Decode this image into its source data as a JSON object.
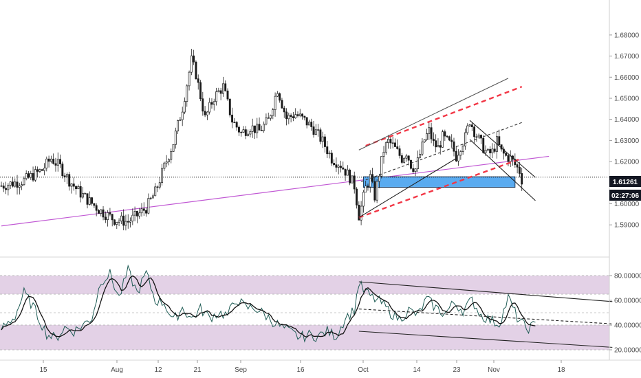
{
  "chart_data": [
    {
      "type": "candlestick",
      "title": "",
      "x_ticks": [
        "15",
        "Aug",
        "12",
        "21",
        "Sep",
        "16",
        "Oct",
        "14",
        "23",
        "Nov",
        "18"
      ],
      "y_ticks": [
        "1.68000",
        "1.67000",
        "1.66000",
        "1.65000",
        "1.64000",
        "1.63000",
        "1.62000",
        "1.61000",
        "1.60000",
        "1.59000"
      ],
      "ylim": [
        1.5855,
        1.6855
      ],
      "last_price": "1.61261",
      "countdown": "02:27:06",
      "price_anchors": [
        [
          0,
          1.6085
        ],
        [
          10,
          1.611
        ],
        [
          18,
          1.616
        ],
        [
          22,
          1.6215
        ],
        [
          26,
          1.6175
        ],
        [
          30,
          1.611
        ],
        [
          34,
          1.606
        ],
        [
          38,
          1.602
        ],
        [
          44,
          1.5965
        ],
        [
          50,
          1.5925
        ],
        [
          56,
          1.5915
        ],
        [
          60,
          1.5945
        ],
        [
          64,
          1.598
        ],
        [
          68,
          1.6055
        ],
        [
          72,
          1.6175
        ],
        [
          76,
          1.629
        ],
        [
          80,
          1.6455
        ],
        [
          84,
          1.668
        ],
        [
          86,
          1.6615
        ],
        [
          90,
          1.6405
        ],
        [
          94,
          1.6505
        ],
        [
          98,
          1.6555
        ],
        [
          102,
          1.6395
        ],
        [
          106,
          1.6335
        ],
        [
          110,
          1.6365
        ],
        [
          114,
          1.6345
        ],
        [
          118,
          1.6395
        ],
        [
          122,
          1.6545
        ],
        [
          126,
          1.6405
        ],
        [
          130,
          1.6425
        ],
        [
          134,
          1.6395
        ],
        [
          138,
          1.6355
        ],
        [
          142,
          1.6295
        ],
        [
          146,
          1.6215
        ],
        [
          150,
          1.6185
        ],
        [
          154,
          1.6125
        ],
        [
          156,
          1.6085
        ],
        [
          158,
          1.5945
        ],
        [
          159,
          1.5985
        ],
        [
          161,
          1.6075
        ],
        [
          163,
          1.6125
        ],
        [
          165,
          1.6035
        ],
        [
          167,
          1.6145
        ],
        [
          169,
          1.6255
        ],
        [
          171,
          1.6295
        ],
        [
          173,
          1.6275
        ],
        [
          175,
          1.6245
        ],
        [
          177,
          1.6215
        ],
        [
          179,
          1.6245
        ],
        [
          181,
          1.6185
        ],
        [
          183,
          1.6165
        ],
        [
          185,
          1.6235
        ],
        [
          187,
          1.6305
        ],
        [
          189,
          1.6345
        ],
        [
          191,
          1.6285
        ],
        [
          193,
          1.6265
        ],
        [
          195,
          1.6315
        ],
        [
          197,
          1.6295
        ],
        [
          199,
          1.6275
        ],
        [
          201,
          1.6225
        ],
        [
          203,
          1.6275
        ],
        [
          205,
          1.6315
        ],
        [
          207,
          1.6395
        ],
        [
          209,
          1.6345
        ],
        [
          211,
          1.6305
        ],
        [
          213,
          1.6265
        ],
        [
          215,
          1.6235
        ],
        [
          217,
          1.6245
        ],
        [
          219,
          1.6295
        ],
        [
          221,
          1.6245
        ],
        [
          223,
          1.6225
        ],
        [
          225,
          1.6215
        ],
        [
          227,
          1.6185
        ],
        [
          229,
          1.6155
        ],
        [
          230,
          1.6115
        ]
      ],
      "annotations": {
        "horizontal_line": 1.61261,
        "support_zone": [
          1.6078,
          1.6128
        ],
        "trendlines": [
          {
            "name": "purple-trendline",
            "color": "#c159d4",
            "style": "solid",
            "from": [
              0,
              1.5895
            ],
            "to": [
              242,
              1.6225
            ]
          },
          {
            "name": "channel-upper-red",
            "color": "#f23645",
            "style": "dashed",
            "from": [
              161,
              1.6275
            ],
            "to": [
              230,
              1.6555
            ]
          },
          {
            "name": "channel-lower-red",
            "color": "#f23645",
            "style": "dashed",
            "from": [
              158,
              1.5935
            ],
            "to": [
              230,
              1.6215
            ]
          },
          {
            "name": "channel-mid-dashed",
            "color": "#3a3a3a",
            "style": "dashed",
            "from": [
              159,
              1.6105
            ],
            "to": [
              230,
              1.6385
            ]
          },
          {
            "name": "rising-channel-top",
            "color": "#555555",
            "style": "solid",
            "from": [
              158,
              1.6255
            ],
            "to": [
              224,
              1.6595
            ]
          },
          {
            "name": "rising-channel-bottom",
            "color": "#222222",
            "style": "solid",
            "from": [
              158,
              1.5935
            ],
            "to": [
              201,
              1.6215
            ]
          },
          {
            "name": "pennant-upper",
            "color": "#222222",
            "style": "solid",
            "from": [
              207,
              1.6395
            ],
            "to": [
              236,
              1.6125
            ]
          },
          {
            "name": "pennant-lower",
            "color": "#222222",
            "style": "solid",
            "from": [
              207,
              1.6305
            ],
            "to": [
              236,
              1.6015
            ]
          }
        ]
      }
    },
    {
      "type": "line",
      "title": "",
      "y_ticks": [
        "80.00000",
        "60.00000",
        "40.00000",
        "20.00000"
      ],
      "ylim": [
        13,
        93
      ],
      "bands": [
        [
          40,
          20
        ],
        [
          80,
          65
        ]
      ],
      "rsi_anchors": [
        [
          0,
          37
        ],
        [
          6,
          47
        ],
        [
          10,
          66
        ],
        [
          14,
          55
        ],
        [
          20,
          33
        ],
        [
          24,
          29
        ],
        [
          28,
          38
        ],
        [
          32,
          35
        ],
        [
          36,
          40
        ],
        [
          40,
          46
        ],
        [
          44,
          76
        ],
        [
          48,
          81
        ],
        [
          52,
          62
        ],
        [
          56,
          84
        ],
        [
          60,
          66
        ],
        [
          64,
          82
        ],
        [
          68,
          60
        ],
        [
          72,
          58
        ],
        [
          76,
          43
        ],
        [
          80,
          54
        ],
        [
          84,
          45
        ],
        [
          88,
          53
        ],
        [
          92,
          46
        ],
        [
          96,
          50
        ],
        [
          100,
          48
        ],
        [
          104,
          61
        ],
        [
          108,
          54
        ],
        [
          112,
          54
        ],
        [
          116,
          49
        ],
        [
          120,
          43
        ],
        [
          124,
          38
        ],
        [
          128,
          34
        ],
        [
          132,
          30
        ],
        [
          136,
          32
        ],
        [
          140,
          31
        ],
        [
          144,
          35
        ],
        [
          148,
          31
        ],
        [
          152,
          46
        ],
        [
          156,
          52
        ],
        [
          158,
          74
        ],
        [
          160,
          68
        ],
        [
          164,
          62
        ],
        [
          168,
          58
        ],
        [
          172,
          50
        ],
        [
          176,
          45
        ],
        [
          180,
          52
        ],
        [
          184,
          48
        ],
        [
          188,
          61
        ],
        [
          192,
          54
        ],
        [
          196,
          49
        ],
        [
          200,
          58
        ],
        [
          204,
          52
        ],
        [
          208,
          60
        ],
        [
          212,
          48
        ],
        [
          216,
          44
        ],
        [
          220,
          41
        ],
        [
          224,
          62
        ],
        [
          228,
          46
        ],
        [
          232,
          37
        ],
        [
          236,
          40
        ]
      ],
      "annotations": {
        "trendlines": [
          {
            "name": "rsi-upper-line",
            "style": "solid",
            "from": [
              158,
              75
            ],
            "to": [
              270,
              59
            ]
          },
          {
            "name": "rsi-mid-dashed",
            "style": "dashed",
            "from": [
              158,
              53
            ],
            "to": [
              270,
              41
            ]
          },
          {
            "name": "rsi-lower-line",
            "style": "solid",
            "from": [
              158,
              35
            ],
            "to": [
              270,
              22
            ]
          }
        ]
      }
    }
  ]
}
